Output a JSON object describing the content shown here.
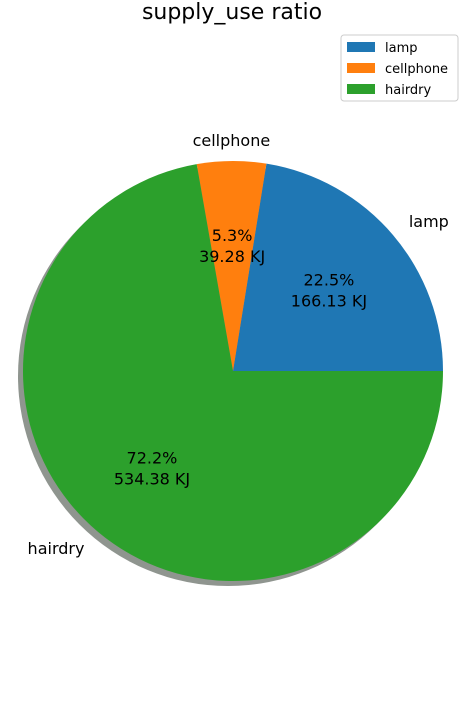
{
  "chart_data": {
    "type": "pie",
    "title": "supply_use ratio",
    "unit": "KJ",
    "categories": [
      "lamp",
      "cellphone",
      "hairdry"
    ],
    "values": [
      166.13,
      39.28,
      534.38
    ],
    "percent_labels": [
      "22.5%",
      "5.3%",
      "72.2%"
    ],
    "value_labels": [
      "166.13 KJ",
      "39.28 KJ",
      "534.38 KJ"
    ],
    "colors": [
      "#1f77b4",
      "#ff7f0e",
      "#2ca02c"
    ],
    "start_angle_deg": 0,
    "direction": "counterclockwise",
    "shadow": true,
    "legend": {
      "position": "top-right",
      "entries": [
        "lamp",
        "cellphone",
        "hairdry"
      ]
    }
  }
}
